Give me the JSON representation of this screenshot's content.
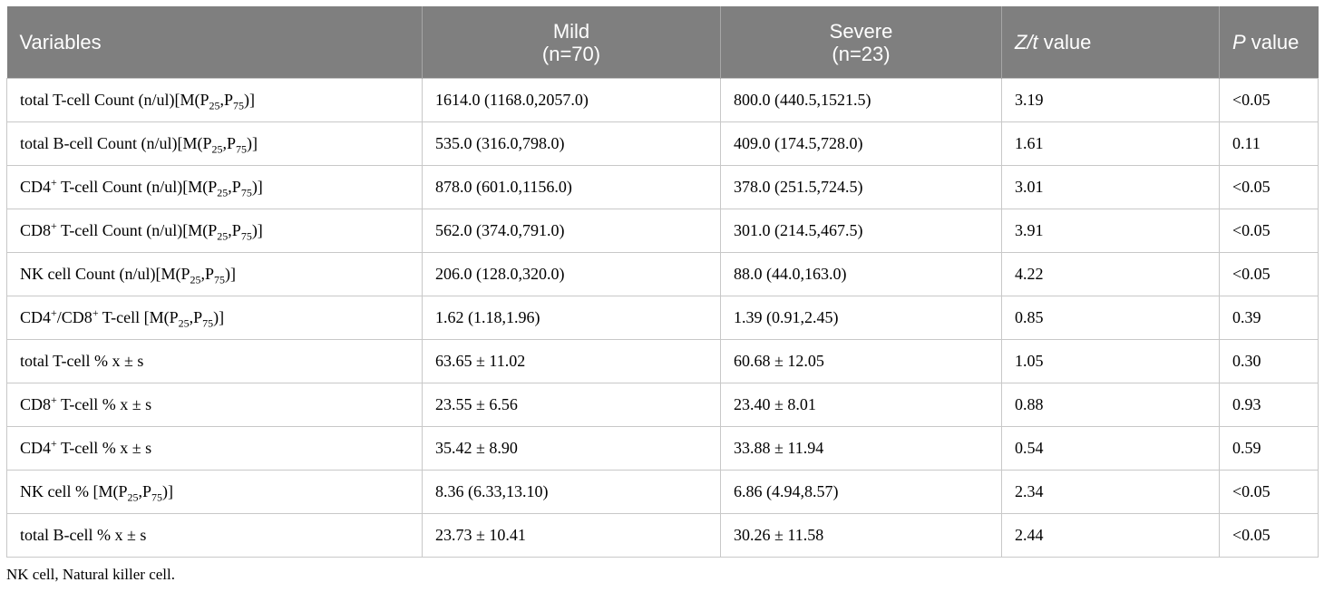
{
  "table": {
    "headers": {
      "variables": "Variables",
      "mild_name": "Mild",
      "mild_n": "(n=70)",
      "severe_name": "Severe",
      "severe_n": "(n=23)",
      "z_italic": "Z/t",
      "z_rest": " value",
      "p_italic": "P",
      "p_rest": " value"
    },
    "rows": [
      {
        "label": [
          "total T-cell Count (n/ul)[M(P",
          {
            "sub": "25"
          },
          ",P",
          {
            "sub": "75"
          },
          ")]"
        ],
        "mild": "1614.0 (1168.0,2057.0)",
        "severe": "800.0 (440.5,1521.5)",
        "z": "3.19",
        "p": "<0.05"
      },
      {
        "label": [
          "total B-cell Count (n/ul)[M(P",
          {
            "sub": "25"
          },
          ",P",
          {
            "sub": "75"
          },
          ")]"
        ],
        "mild": "535.0 (316.0,798.0)",
        "severe": "409.0 (174.5,728.0)",
        "z": "1.61",
        "p": "0.11"
      },
      {
        "label": [
          "CD4",
          {
            "sup": "+"
          },
          " T-cell Count (n/ul)[M(P",
          {
            "sub": "25"
          },
          ",P",
          {
            "sub": "75"
          },
          ")]"
        ],
        "mild": "878.0 (601.0,1156.0)",
        "severe": "378.0 (251.5,724.5)",
        "z": "3.01",
        "p": "<0.05"
      },
      {
        "label": [
          "CD8",
          {
            "sup": "+"
          },
          " T-cell Count (n/ul)[M(P",
          {
            "sub": "25"
          },
          ",P",
          {
            "sub": "75"
          },
          ")]"
        ],
        "mild": "562.0 (374.0,791.0)",
        "severe": "301.0 (214.5,467.5)",
        "z": "3.91",
        "p": "<0.05"
      },
      {
        "label": [
          "NK cell Count (n/ul)[M(P",
          {
            "sub": "25"
          },
          ",P",
          {
            "sub": "75"
          },
          ")]"
        ],
        "mild": "206.0 (128.0,320.0)",
        "severe": "88.0 (44.0,163.0)",
        "z": "4.22",
        "p": "<0.05"
      },
      {
        "label": [
          "CD4",
          {
            "sup": "+"
          },
          "/CD8",
          {
            "sup": "+"
          },
          " T-cell [M(P",
          {
            "sub": "25"
          },
          ",P",
          {
            "sub": "75"
          },
          ")]"
        ],
        "mild": "1.62 (1.18,1.96)",
        "severe": "1.39 (0.91,2.45)",
        "z": "0.85",
        "p": "0.39"
      },
      {
        "label": [
          "total T-cell % x ± s"
        ],
        "mild": "63.65 ± 11.02",
        "severe": "60.68 ± 12.05",
        "z": "1.05",
        "p": "0.30"
      },
      {
        "label": [
          "CD8",
          {
            "sup": "+"
          },
          " T-cell % x ± s"
        ],
        "mild": "23.55 ± 6.56",
        "severe": "23.40 ± 8.01",
        "z": "0.88",
        "p": "0.93"
      },
      {
        "label": [
          "CD4",
          {
            "sup": "+"
          },
          " T-cell % x ± s"
        ],
        "mild": "35.42 ± 8.90",
        "severe": "33.88 ± 11.94",
        "z": "0.54",
        "p": "0.59"
      },
      {
        "label": [
          "NK cell % [M(P",
          {
            "sub": "25"
          },
          ",P",
          {
            "sub": "75"
          },
          ")]"
        ],
        "mild": "8.36 (6.33,13.10)",
        "severe": "6.86 (4.94,8.57)",
        "z": "2.34",
        "p": "<0.05"
      },
      {
        "label": [
          "total B-cell % x ± s"
        ],
        "mild": "23.73 ± 10.41",
        "severe": "30.26 ± 11.58",
        "z": "2.44",
        "p": "<0.05"
      }
    ]
  },
  "footnote": "NK cell, Natural killer cell.",
  "colors": {
    "header_bg": "#7f7f7f",
    "header_text": "#ffffff",
    "grid": "#c8c8c8"
  }
}
